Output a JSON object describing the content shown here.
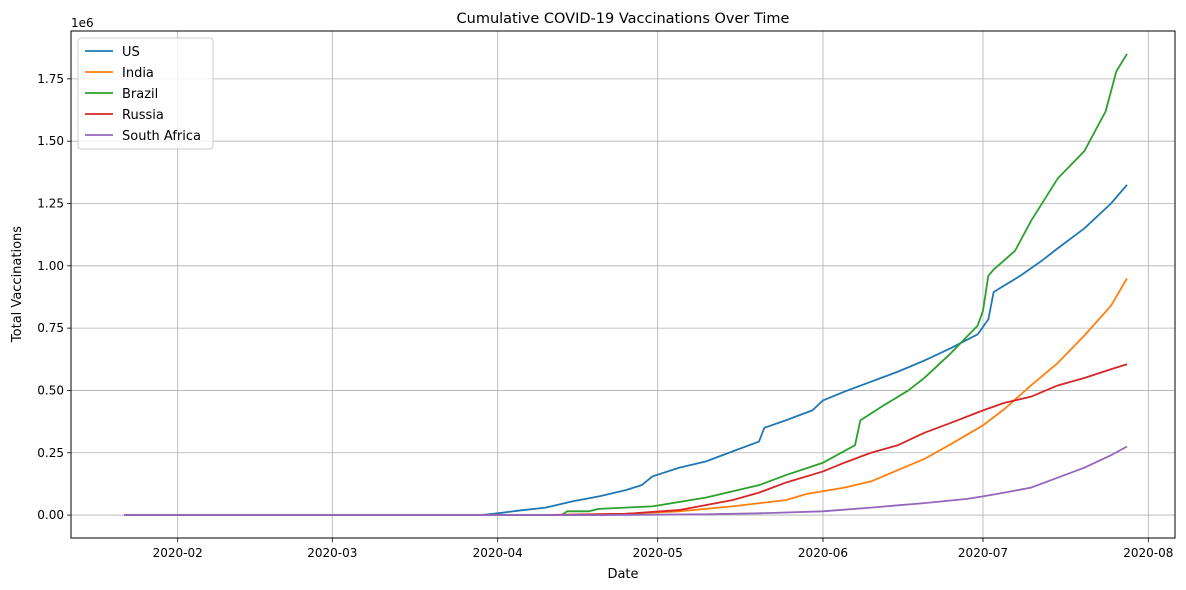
{
  "chart_data": {
    "type": "line",
    "title": "Cumulative COVID-19 Vaccinations Over Time",
    "xlabel": "Date",
    "ylabel": "Total Vaccinations",
    "y_offset_label": "1e6",
    "x_range": [
      "2020-01-12",
      "2020-08-06"
    ],
    "ylim": [
      -0.092,
      1.942
    ],
    "grid": true,
    "legend_position": "top-left",
    "x_ticks": [
      "2020-02",
      "2020-03",
      "2020-04",
      "2020-05",
      "2020-06",
      "2020-07",
      "2020-08"
    ],
    "y_ticks": [
      "0.00",
      "0.25",
      "0.50",
      "0.75",
      "1.00",
      "1.25",
      "1.50",
      "1.75"
    ],
    "series": [
      {
        "name": "US",
        "color": "#1f77b4",
        "points": [
          [
            "2020-01-22",
            0
          ],
          [
            "2020-03-29",
            0
          ],
          [
            "2020-04-01",
            0.007
          ],
          [
            "2020-04-05",
            0.018
          ],
          [
            "2020-04-10",
            0.03
          ],
          [
            "2020-04-15",
            0.055
          ],
          [
            "2020-04-20",
            0.075
          ],
          [
            "2020-04-25",
            0.1
          ],
          [
            "2020-04-28",
            0.12
          ],
          [
            "2020-04-30",
            0.155
          ],
          [
            "2020-05-05",
            0.19
          ],
          [
            "2020-05-10",
            0.215
          ],
          [
            "2020-05-15",
            0.255
          ],
          [
            "2020-05-20",
            0.295
          ],
          [
            "2020-05-21",
            0.35
          ],
          [
            "2020-05-25",
            0.38
          ],
          [
            "2020-05-30",
            0.42
          ],
          [
            "2020-06-01",
            0.46
          ],
          [
            "2020-06-05",
            0.495
          ],
          [
            "2020-06-10",
            0.535
          ],
          [
            "2020-06-15",
            0.575
          ],
          [
            "2020-06-20",
            0.62
          ],
          [
            "2020-06-25",
            0.67
          ],
          [
            "2020-06-30",
            0.725
          ],
          [
            "2020-07-02",
            0.785
          ],
          [
            "2020-07-03",
            0.895
          ],
          [
            "2020-07-08",
            0.96
          ],
          [
            "2020-07-12",
            1.02
          ],
          [
            "2020-07-15",
            1.07
          ],
          [
            "2020-07-20",
            1.15
          ],
          [
            "2020-07-25",
            1.25
          ],
          [
            "2020-07-28",
            1.325
          ]
        ]
      },
      {
        "name": "India",
        "color": "#ff7f0e",
        "points": [
          [
            "2020-01-22",
            0
          ],
          [
            "2020-04-10",
            0
          ],
          [
            "2020-04-25",
            0.005
          ],
          [
            "2020-05-05",
            0.015
          ],
          [
            "2020-05-15",
            0.035
          ],
          [
            "2020-05-25",
            0.06
          ],
          [
            "2020-05-29",
            0.085
          ],
          [
            "2020-06-05",
            0.11
          ],
          [
            "2020-06-10",
            0.135
          ],
          [
            "2020-06-15",
            0.18
          ],
          [
            "2020-06-20",
            0.225
          ],
          [
            "2020-06-25",
            0.285
          ],
          [
            "2020-07-01",
            0.36
          ],
          [
            "2020-07-05",
            0.425
          ],
          [
            "2020-07-10",
            0.52
          ],
          [
            "2020-07-15",
            0.61
          ],
          [
            "2020-07-20",
            0.72
          ],
          [
            "2020-07-25",
            0.84
          ],
          [
            "2020-07-28",
            0.95
          ]
        ]
      },
      {
        "name": "Brazil",
        "color": "#2ca02c",
        "points": [
          [
            "2020-01-22",
            0
          ],
          [
            "2020-04-13",
            0
          ],
          [
            "2020-04-14",
            0.015
          ],
          [
            "2020-04-18",
            0.015
          ],
          [
            "2020-04-20",
            0.025
          ],
          [
            "2020-04-30",
            0.035
          ],
          [
            "2020-05-10",
            0.07
          ],
          [
            "2020-05-20",
            0.12
          ],
          [
            "2020-05-25",
            0.16
          ],
          [
            "2020-06-01",
            0.21
          ],
          [
            "2020-06-07",
            0.28
          ],
          [
            "2020-06-08",
            0.38
          ],
          [
            "2020-06-12",
            0.435
          ],
          [
            "2020-06-17",
            0.5
          ],
          [
            "2020-06-20",
            0.55
          ],
          [
            "2020-06-25",
            0.65
          ],
          [
            "2020-06-30",
            0.76
          ],
          [
            "2020-07-01",
            0.82
          ],
          [
            "2020-07-02",
            0.96
          ],
          [
            "2020-07-03",
            0.985
          ],
          [
            "2020-07-07",
            1.06
          ],
          [
            "2020-07-10",
            1.18
          ],
          [
            "2020-07-15",
            1.35
          ],
          [
            "2020-07-20",
            1.46
          ],
          [
            "2020-07-24",
            1.62
          ],
          [
            "2020-07-26",
            1.78
          ],
          [
            "2020-07-28",
            1.85
          ]
        ]
      },
      {
        "name": "Russia",
        "color": "#d62728",
        "points": [
          [
            "2020-01-22",
            0
          ],
          [
            "2020-04-10",
            0
          ],
          [
            "2020-04-25",
            0.005
          ],
          [
            "2020-05-05",
            0.02
          ],
          [
            "2020-05-10",
            0.04
          ],
          [
            "2020-05-15",
            0.06
          ],
          [
            "2020-05-20",
            0.09
          ],
          [
            "2020-05-25",
            0.13
          ],
          [
            "2020-06-01",
            0.175
          ],
          [
            "2020-06-05",
            0.21
          ],
          [
            "2020-06-10",
            0.25
          ],
          [
            "2020-06-15",
            0.28
          ],
          [
            "2020-06-20",
            0.33
          ],
          [
            "2020-06-25",
            0.37
          ],
          [
            "2020-07-01",
            0.42
          ],
          [
            "2020-07-05",
            0.45
          ],
          [
            "2020-07-10",
            0.475
          ],
          [
            "2020-07-15",
            0.52
          ],
          [
            "2020-07-20",
            0.55
          ],
          [
            "2020-07-25",
            0.585
          ],
          [
            "2020-07-28",
            0.605
          ]
        ]
      },
      {
        "name": "South Africa",
        "color": "#9467bd",
        "points": [
          [
            "2020-01-22",
            0
          ],
          [
            "2020-04-20",
            0
          ],
          [
            "2020-05-10",
            0.003
          ],
          [
            "2020-05-20",
            0.007
          ],
          [
            "2020-06-01",
            0.015
          ],
          [
            "2020-06-10",
            0.03
          ],
          [
            "2020-06-20",
            0.048
          ],
          [
            "2020-06-28",
            0.065
          ],
          [
            "2020-07-01",
            0.075
          ],
          [
            "2020-07-05",
            0.09
          ],
          [
            "2020-07-10",
            0.11
          ],
          [
            "2020-07-15",
            0.15
          ],
          [
            "2020-07-20",
            0.19
          ],
          [
            "2020-07-25",
            0.24
          ],
          [
            "2020-07-28",
            0.275
          ]
        ]
      }
    ]
  }
}
